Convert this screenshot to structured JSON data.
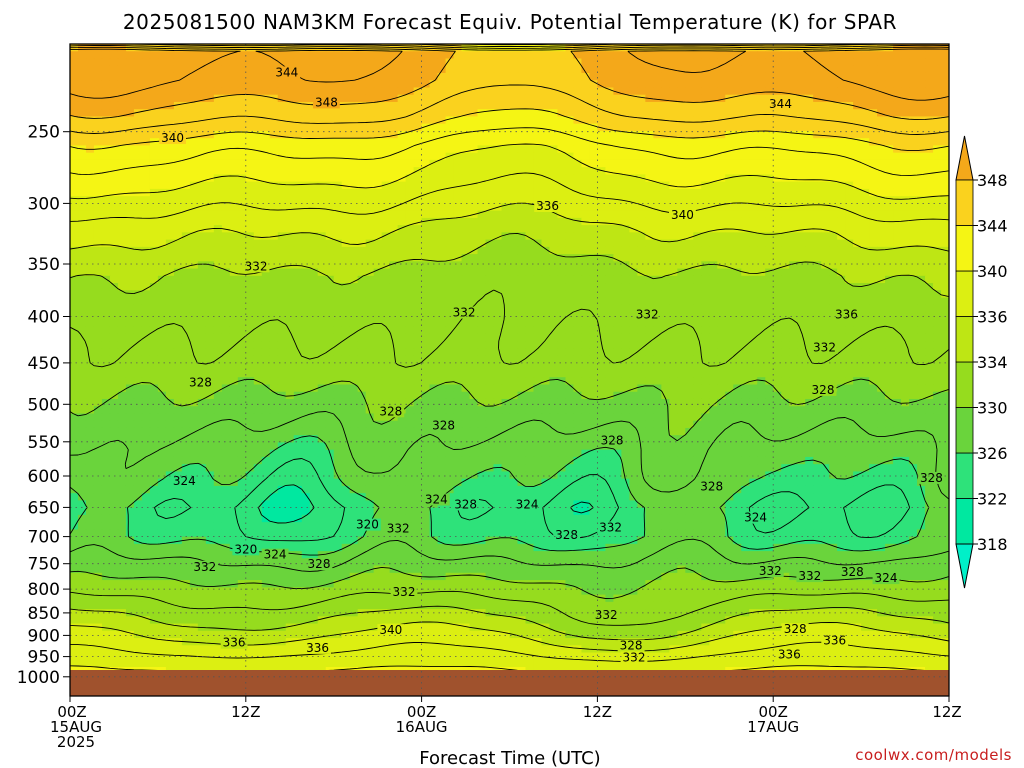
{
  "title": "2025081500 NAM3KM Forecast Equiv. Potential Temperature (K) for SPAR",
  "credit": "coolwx.com/models",
  "chart_data": {
    "type": "heatmap",
    "title": "2025081500 NAM3KM Forecast Equiv. Potential Temperature (K) for SPAR",
    "xlabel": "Forecast Time (UTC)",
    "ylabel": "",
    "x_range_hours": [
      0,
      60
    ],
    "y_range_hpa": [
      200,
      1050
    ],
    "x_ticks": [
      {
        "hour": 0,
        "lines": [
          "00Z",
          "15AUG",
          "2025"
        ]
      },
      {
        "hour": 12,
        "lines": [
          "12Z"
        ]
      },
      {
        "hour": 24,
        "lines": [
          "00Z",
          "16AUG"
        ]
      },
      {
        "hour": 36,
        "lines": [
          "12Z"
        ]
      },
      {
        "hour": 48,
        "lines": [
          "00Z",
          "17AUG"
        ]
      },
      {
        "hour": 60,
        "lines": [
          "12Z"
        ]
      }
    ],
    "y_ticks": [
      250,
      300,
      350,
      400,
      450,
      500,
      550,
      600,
      650,
      700,
      750,
      800,
      850,
      900,
      950,
      1000
    ],
    "grid": true,
    "colorbar": {
      "levels": [
        318,
        322,
        326,
        330,
        334,
        336,
        340,
        344,
        348
      ],
      "colors": [
        "#00e8a0",
        "#2ee27a",
        "#6ad43c",
        "#96dc1e",
        "#bee614",
        "#dcef12",
        "#f5f514",
        "#fad21e",
        "#f4a81a"
      ],
      "under_color": "#00f0c8",
      "over_color": "#f4a81a"
    },
    "contour_labels": [
      {
        "hour": 17.5,
        "p": 232,
        "value": "348"
      },
      {
        "hour": 14.8,
        "p": 215,
        "value": "344"
      },
      {
        "hour": 7.0,
        "p": 254,
        "value": "340"
      },
      {
        "hour": 48.5,
        "p": 233,
        "value": "344"
      },
      {
        "hour": 41.8,
        "p": 309,
        "value": "340"
      },
      {
        "hour": 32.6,
        "p": 302,
        "value": "336"
      },
      {
        "hour": 12.7,
        "p": 352,
        "value": "332"
      },
      {
        "hour": 26.9,
        "p": 396,
        "value": "332"
      },
      {
        "hour": 39.4,
        "p": 398,
        "value": "332"
      },
      {
        "hour": 53.0,
        "p": 398,
        "value": "336"
      },
      {
        "hour": 51.5,
        "p": 433,
        "value": "332"
      },
      {
        "hour": 51.4,
        "p": 482,
        "value": "328"
      },
      {
        "hour": 8.9,
        "p": 473,
        "value": "328"
      },
      {
        "hour": 21.9,
        "p": 509,
        "value": "328"
      },
      {
        "hour": 25.5,
        "p": 528,
        "value": "328"
      },
      {
        "hour": 37.0,
        "p": 548,
        "value": "328"
      },
      {
        "hour": 58.8,
        "p": 603,
        "value": "328"
      },
      {
        "hour": 7.8,
        "p": 608,
        "value": "324"
      },
      {
        "hour": 43.8,
        "p": 616,
        "value": "328"
      },
      {
        "hour": 25.0,
        "p": 637,
        "value": "324"
      },
      {
        "hour": 27.0,
        "p": 645,
        "value": "328"
      },
      {
        "hour": 31.2,
        "p": 645,
        "value": "324"
      },
      {
        "hour": 20.3,
        "p": 679,
        "value": "320"
      },
      {
        "hour": 22.4,
        "p": 686,
        "value": "332"
      },
      {
        "hour": 33.9,
        "p": 697,
        "value": "328"
      },
      {
        "hour": 36.9,
        "p": 684,
        "value": "332"
      },
      {
        "hour": 46.8,
        "p": 667,
        "value": "324"
      },
      {
        "hour": 12.0,
        "p": 723,
        "value": "320"
      },
      {
        "hour": 14.0,
        "p": 733,
        "value": "324"
      },
      {
        "hour": 9.2,
        "p": 756,
        "value": "332"
      },
      {
        "hour": 17.0,
        "p": 751,
        "value": "328"
      },
      {
        "hour": 47.8,
        "p": 764,
        "value": "332"
      },
      {
        "hour": 50.5,
        "p": 774,
        "value": "332"
      },
      {
        "hour": 53.4,
        "p": 766,
        "value": "328"
      },
      {
        "hour": 55.7,
        "p": 778,
        "value": "324"
      },
      {
        "hour": 22.8,
        "p": 806,
        "value": "332"
      },
      {
        "hour": 36.6,
        "p": 854,
        "value": "332"
      },
      {
        "hour": 21.9,
        "p": 888,
        "value": "340"
      },
      {
        "hour": 49.5,
        "p": 886,
        "value": "328"
      },
      {
        "hour": 52.2,
        "p": 912,
        "value": "336"
      },
      {
        "hour": 11.2,
        "p": 917,
        "value": "336"
      },
      {
        "hour": 16.9,
        "p": 929,
        "value": "336"
      },
      {
        "hour": 38.3,
        "p": 924,
        "value": "328"
      },
      {
        "hour": 38.5,
        "p": 952,
        "value": "332"
      },
      {
        "hour": 49.1,
        "p": 945,
        "value": "336"
      }
    ]
  }
}
